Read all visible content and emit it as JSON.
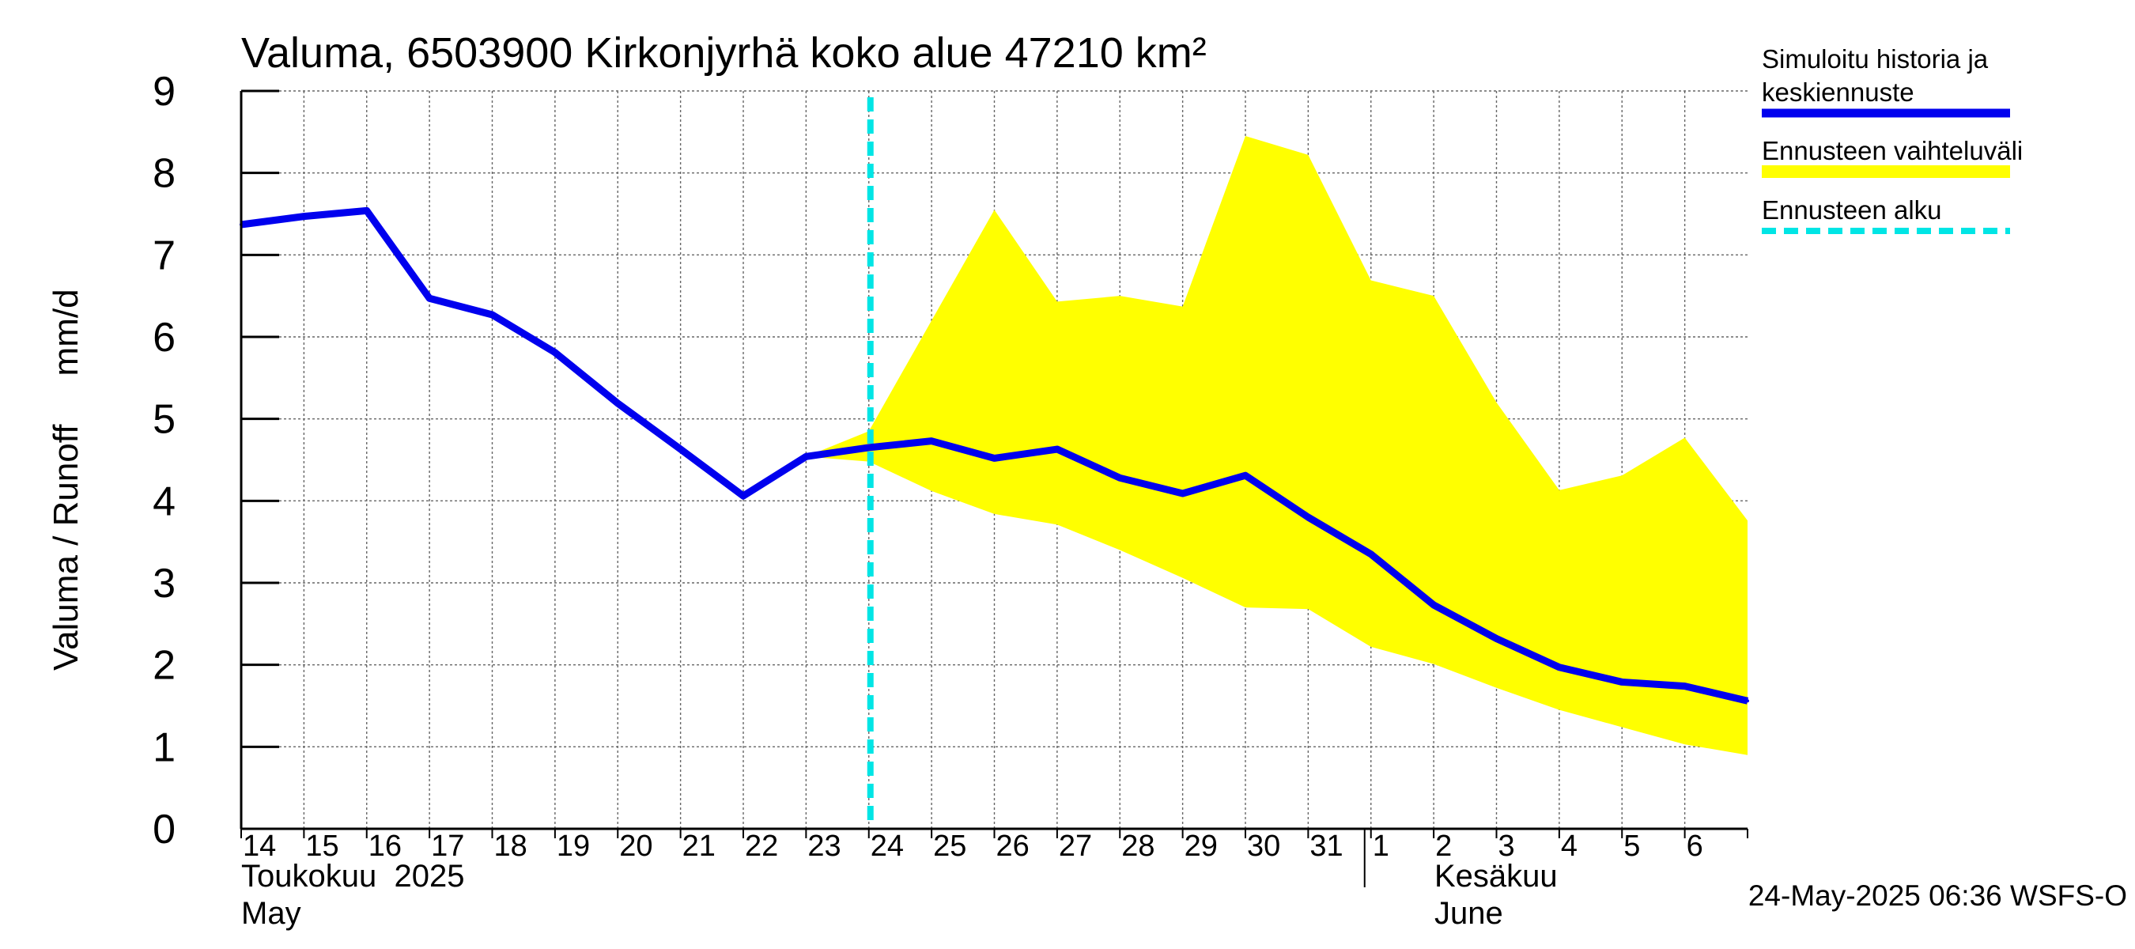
{
  "chart_data": {
    "type": "line",
    "title": "Valuma, 6503900 Kirkonjyrhä koko alue 47210 km²",
    "ylabel": "Valuma / Runoff     mm/d",
    "ylim": [
      0,
      9
    ],
    "yticks": [
      0,
      1,
      2,
      3,
      4,
      5,
      6,
      7,
      8,
      9
    ],
    "grid": true,
    "x_range_days": [
      0,
      24
    ],
    "x_tick_labels": [
      "14",
      "15",
      "16",
      "17",
      "18",
      "19",
      "20",
      "21",
      "22",
      "23",
      "24",
      "25",
      "26",
      "27",
      "28",
      "29",
      "30",
      "31",
      "1",
      "2",
      "3",
      "4",
      "5",
      "6"
    ],
    "month_labels": {
      "may_fi": "Toukokuu  2025",
      "may_en": "May",
      "june_fi": "Kesäkuu",
      "june_en": "June"
    },
    "june_start_day": 18,
    "forecast_start_day": 10,
    "series": [
      {
        "name": "Simuloitu historia ja keskiennuste",
        "color": "#0000ee",
        "x": [
          0,
          1,
          2,
          3,
          4,
          5,
          6,
          7,
          8,
          9,
          10,
          11,
          12,
          13,
          14,
          15,
          16,
          17,
          18,
          19,
          20,
          21,
          22,
          23,
          24
        ],
        "values": [
          7.37,
          7.47,
          7.54,
          6.47,
          6.27,
          5.81,
          5.19,
          4.63,
          4.06,
          4.54,
          4.65,
          4.73,
          4.52,
          4.63,
          4.28,
          4.09,
          4.31,
          3.8,
          3.35,
          2.73,
          2.32,
          1.97,
          1.79,
          1.74,
          1.56
        ]
      }
    ],
    "band": {
      "name": "Ennusteen vaihteluväli",
      "color": "#ffff00",
      "x": [
        9,
        10,
        11,
        12,
        13,
        14,
        15,
        16,
        17,
        18,
        19,
        20,
        21,
        22,
        23,
        24
      ],
      "upper": [
        4.54,
        4.85,
        6.2,
        7.55,
        6.43,
        6.5,
        6.37,
        8.45,
        8.22,
        6.69,
        6.5,
        5.2,
        4.13,
        4.31,
        4.77,
        3.76
      ],
      "lower": [
        4.54,
        4.48,
        4.12,
        3.84,
        3.71,
        3.4,
        3.06,
        2.7,
        2.68,
        2.22,
        2.01,
        1.72,
        1.45,
        1.24,
        1.03,
        0.9
      ]
    },
    "forecast_line": {
      "name": "Ennusteen alku",
      "color": "#00e5e5"
    },
    "legend": {
      "placement": "right",
      "entries": [
        {
          "line1": "Simuloitu historia ja",
          "line2": "keskiennuste",
          "color": "#0000ee",
          "style": "solid"
        },
        {
          "line1": "Ennusteen vaihteluväli",
          "line2": "",
          "color": "#ffff00",
          "style": "band"
        },
        {
          "line1": "Ennusteen alku",
          "line2": "",
          "color": "#00e5e5",
          "style": "dashed"
        }
      ]
    },
    "footer": "24-May-2025 06:36 WSFS-O"
  }
}
